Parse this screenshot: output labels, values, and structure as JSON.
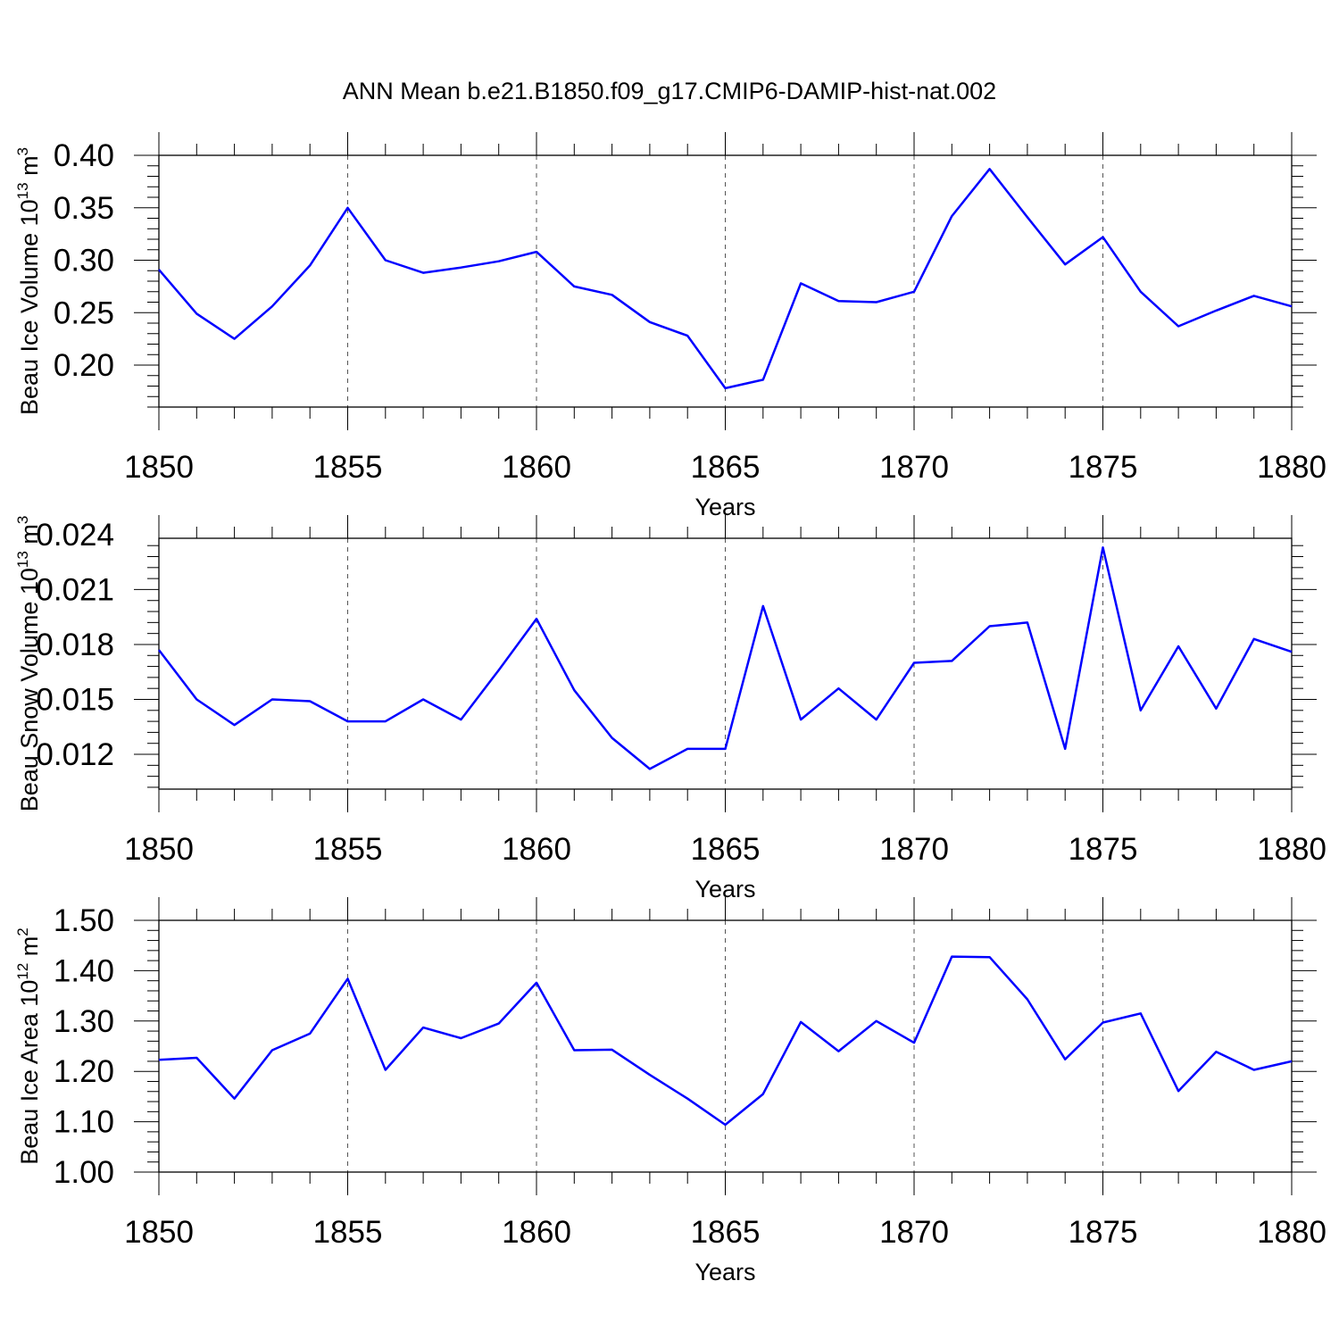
{
  "title": "ANN Mean b.e21.B1850.f09_g17.CMIP6-DAMIP-hist-nat.002",
  "colors": {
    "line": "#0000ff",
    "axis": "#000000",
    "grid": "#555555"
  },
  "chart_data": [
    {
      "type": "line",
      "xlabel": "Years",
      "ylabel": {
        "text": "Beau Ice Volume 10",
        "sup": "13",
        "unit": " m",
        "unit_sup": "3"
      },
      "xlim": [
        1850,
        1880
      ],
      "ylim": [
        0.16,
        0.4
      ],
      "xticks": [
        "1850",
        "1855",
        "1860",
        "1865",
        "1870",
        "1875",
        "1880"
      ],
      "yticks": [
        "0.20",
        "0.25",
        "0.30",
        "0.35",
        "0.40"
      ],
      "grid": "vertical dashed at major x ticks",
      "series": [
        {
          "x": [
            1850,
            1851,
            1852,
            1853,
            1854,
            1855,
            1856,
            1857,
            1858,
            1859,
            1860,
            1861,
            1862,
            1863,
            1864,
            1865,
            1866,
            1867,
            1868,
            1869,
            1870,
            1871,
            1872,
            1873,
            1874,
            1875,
            1876,
            1877,
            1878,
            1879,
            1880
          ],
          "values": [
            0.291,
            0.249,
            0.225,
            0.256,
            0.295,
            0.35,
            0.3,
            0.288,
            0.293,
            0.299,
            0.308,
            0.275,
            0.267,
            0.241,
            0.228,
            0.178,
            0.186,
            0.278,
            0.261,
            0.26,
            0.27,
            0.342,
            0.387,
            0.341,
            0.296,
            0.322,
            0.27,
            0.237,
            0.252,
            0.266,
            0.256
          ]
        }
      ]
    },
    {
      "type": "line",
      "xlabel": "Years",
      "ylabel": {
        "text": "Beau Snow Volume 10",
        "sup": "13",
        "unit": " m",
        "unit_sup": "3"
      },
      "xlim": [
        1850,
        1880
      ],
      "ylim": [
        0.0101,
        0.0238
      ],
      "xticks": [
        "1850",
        "1855",
        "1860",
        "1865",
        "1870",
        "1875",
        "1880"
      ],
      "yticks": [
        "0.012",
        "0.015",
        "0.018",
        "0.021",
        "0.024"
      ],
      "grid": "vertical dashed at major x ticks",
      "series": [
        {
          "x": [
            1850,
            1851,
            1852,
            1853,
            1854,
            1855,
            1856,
            1857,
            1858,
            1859,
            1860,
            1861,
            1862,
            1863,
            1864,
            1865,
            1866,
            1867,
            1868,
            1869,
            1870,
            1871,
            1872,
            1873,
            1874,
            1875,
            1876,
            1877,
            1878,
            1879,
            1880
          ],
          "values": [
            0.0177,
            0.015,
            0.0136,
            0.015,
            0.0149,
            0.0138,
            0.0138,
            0.015,
            0.0139,
            0.0166,
            0.0194,
            0.0155,
            0.0129,
            0.0112,
            0.0123,
            0.0123,
            0.0201,
            0.0139,
            0.0156,
            0.0139,
            0.017,
            0.0171,
            0.019,
            0.0192,
            0.0123,
            0.0233,
            0.0144,
            0.0179,
            0.0145,
            0.0183,
            0.0176
          ]
        }
      ]
    },
    {
      "type": "line",
      "xlabel": "Years",
      "ylabel": {
        "text": "Beau Ice Area 10",
        "sup": "12",
        "unit": " m",
        "unit_sup": "2"
      },
      "xlim": [
        1850,
        1880
      ],
      "ylim": [
        1.0,
        1.5
      ],
      "xticks": [
        "1850",
        "1855",
        "1860",
        "1865",
        "1870",
        "1875",
        "1880"
      ],
      "yticks": [
        "1.00",
        "1.10",
        "1.20",
        "1.30",
        "1.40",
        "1.50"
      ],
      "grid": "vertical dashed at major x ticks",
      "series": [
        {
          "x": [
            1850,
            1851,
            1852,
            1853,
            1854,
            1855,
            1856,
            1857,
            1858,
            1859,
            1860,
            1861,
            1862,
            1863,
            1864,
            1865,
            1866,
            1867,
            1868,
            1869,
            1870,
            1871,
            1872,
            1873,
            1874,
            1875,
            1876,
            1877,
            1878,
            1879,
            1880
          ],
          "values": [
            1.223,
            1.227,
            1.146,
            1.242,
            1.275,
            1.384,
            1.203,
            1.287,
            1.266,
            1.295,
            1.376,
            1.242,
            1.243,
            1.193,
            1.146,
            1.094,
            1.155,
            1.298,
            1.24,
            1.3,
            1.257,
            1.428,
            1.427,
            1.343,
            1.224,
            1.297,
            1.315,
            1.161,
            1.239,
            1.203,
            1.22
          ]
        }
      ]
    }
  ]
}
